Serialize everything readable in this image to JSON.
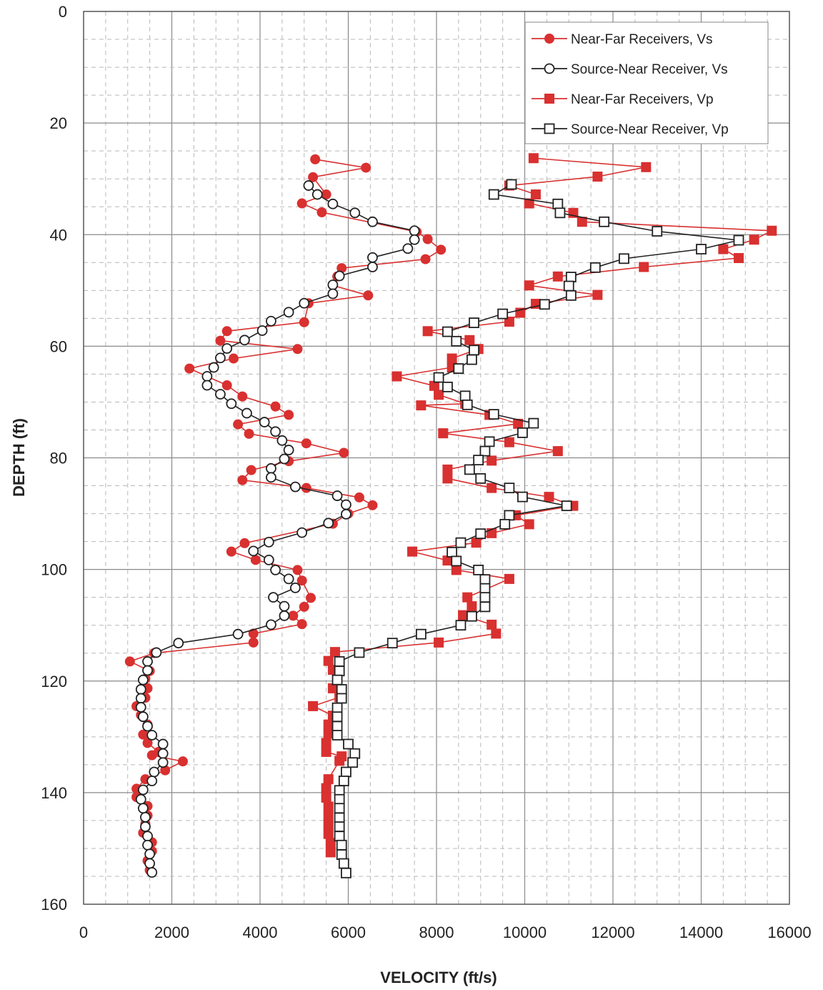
{
  "chart_data": {
    "type": "line",
    "title": "",
    "xlabel": "VELOCITY (ft/s)",
    "ylabel": "DEPTH (ft)",
    "xlim": [
      0,
      16000
    ],
    "ylim": [
      0,
      160
    ],
    "y_inverted": true,
    "x_ticks": [
      "0",
      "2000",
      "4000",
      "6000",
      "8000",
      "10000",
      "12000",
      "14000",
      "16000"
    ],
    "y_ticks": [
      "0",
      "20",
      "40",
      "60",
      "80",
      "100",
      "120",
      "140",
      "160"
    ],
    "grid": "major solid, minor dashed",
    "legend_position": "top-right",
    "series": [
      {
        "name": "Near-Far Receivers, Vs",
        "color": "#d93030",
        "marker": "filled-circle",
        "points": [
          [
            5250,
            26.5
          ],
          [
            6400,
            28
          ],
          [
            5200,
            29.7
          ],
          [
            5500,
            32.8
          ],
          [
            4950,
            34.4
          ],
          [
            5400,
            36
          ],
          [
            7550,
            39.5
          ],
          [
            7800,
            40.8
          ],
          [
            8100,
            42.7
          ],
          [
            7750,
            44.4
          ],
          [
            5850,
            46
          ],
          [
            5750,
            47.5
          ],
          [
            5650,
            49.1
          ],
          [
            6450,
            50.9
          ],
          [
            5100,
            52.3
          ],
          [
            5000,
            55.7
          ],
          [
            3250,
            57.3
          ],
          [
            3100,
            59
          ],
          [
            4850,
            60.5
          ],
          [
            3400,
            62.2
          ],
          [
            2400,
            64
          ],
          [
            3250,
            67
          ],
          [
            3600,
            69
          ],
          [
            4350,
            70.8
          ],
          [
            4650,
            72.3
          ],
          [
            3500,
            74
          ],
          [
            3750,
            75.7
          ],
          [
            5050,
            77.4
          ],
          [
            5900,
            79.1
          ],
          [
            4650,
            80.6
          ],
          [
            3800,
            82.2
          ],
          [
            3600,
            84
          ],
          [
            5050,
            85.4
          ],
          [
            6250,
            87.1
          ],
          [
            6550,
            88.5
          ],
          [
            6000,
            90
          ],
          [
            5650,
            91.8
          ],
          [
            3650,
            95.3
          ],
          [
            3350,
            96.8
          ],
          [
            3900,
            98.3
          ],
          [
            4850,
            100.1
          ],
          [
            4950,
            102
          ],
          [
            5150,
            105.1
          ],
          [
            5000,
            106.7
          ],
          [
            4750,
            108.3
          ],
          [
            4950,
            109.8
          ],
          [
            3850,
            111.5
          ],
          [
            3850,
            113.1
          ],
          [
            1600,
            115
          ],
          [
            1050,
            116.5
          ],
          [
            1500,
            118.2
          ],
          [
            1400,
            119.6
          ],
          [
            1450,
            121.3
          ],
          [
            1400,
            123
          ],
          [
            1200,
            124.5
          ],
          [
            1300,
            126.1
          ],
          [
            1450,
            127.8
          ],
          [
            1350,
            129.6
          ],
          [
            1450,
            131.1
          ],
          [
            1700,
            132.7
          ],
          [
            1550,
            133.3
          ],
          [
            2250,
            134.4
          ],
          [
            1850,
            136
          ],
          [
            1400,
            137.6
          ],
          [
            1200,
            139.3
          ],
          [
            1200,
            140.8
          ],
          [
            1450,
            142.4
          ],
          [
            1450,
            144.1
          ],
          [
            1400,
            145.6
          ],
          [
            1350,
            147.2
          ],
          [
            1550,
            148.9
          ],
          [
            1550,
            150.5
          ],
          [
            1450,
            152.2
          ],
          [
            1500,
            153.9
          ]
        ]
      },
      {
        "name": "Source-Near Receiver, Vs",
        "color": "#222222",
        "marker": "open-circle",
        "points": [
          [
            5100,
            31.2
          ],
          [
            5300,
            32.8
          ],
          [
            5650,
            34.5
          ],
          [
            6150,
            36.1
          ],
          [
            6550,
            37.7
          ],
          [
            7500,
            39.3
          ],
          [
            7500,
            40.9
          ],
          [
            7350,
            42.5
          ],
          [
            6550,
            44.1
          ],
          [
            6550,
            45.8
          ],
          [
            5800,
            47.4
          ],
          [
            5650,
            49
          ],
          [
            5650,
            50.6
          ],
          [
            5000,
            52.3
          ],
          [
            4650,
            53.9
          ],
          [
            4250,
            55.5
          ],
          [
            4050,
            57.2
          ],
          [
            3650,
            58.9
          ],
          [
            3250,
            60.4
          ],
          [
            3100,
            62.1
          ],
          [
            2950,
            63.8
          ],
          [
            2800,
            65.4
          ],
          [
            2800,
            67
          ],
          [
            3100,
            68.6
          ],
          [
            3350,
            70.3
          ],
          [
            3700,
            72
          ],
          [
            4100,
            73.6
          ],
          [
            4350,
            75.3
          ],
          [
            4500,
            76.9
          ],
          [
            4650,
            78.6
          ],
          [
            4550,
            80.2
          ],
          [
            4250,
            81.9
          ],
          [
            4250,
            83.5
          ],
          [
            4800,
            85.2
          ],
          [
            5750,
            86.8
          ],
          [
            5950,
            88.4
          ],
          [
            5950,
            90.1
          ],
          [
            5550,
            91.7
          ],
          [
            4950,
            93.4
          ],
          [
            4200,
            95.1
          ],
          [
            3850,
            96.7
          ],
          [
            4200,
            98.3
          ],
          [
            4350,
            100.1
          ],
          [
            4650,
            101.7
          ],
          [
            4800,
            103.3
          ],
          [
            4300,
            105
          ],
          [
            4550,
            106.6
          ],
          [
            4550,
            108.3
          ],
          [
            4250,
            109.9
          ],
          [
            3500,
            111.6
          ],
          [
            2150,
            113.2
          ],
          [
            1650,
            114.9
          ],
          [
            1450,
            116.5
          ],
          [
            1450,
            118.1
          ],
          [
            1350,
            119.8
          ],
          [
            1300,
            121.5
          ],
          [
            1300,
            123.1
          ],
          [
            1300,
            124.7
          ],
          [
            1350,
            126.4
          ],
          [
            1450,
            128.1
          ],
          [
            1550,
            129.7
          ],
          [
            1800,
            131.3
          ],
          [
            1800,
            133
          ],
          [
            1800,
            134.6
          ],
          [
            1600,
            136.3
          ],
          [
            1550,
            137.9
          ],
          [
            1350,
            139.5
          ],
          [
            1300,
            141.2
          ],
          [
            1350,
            142.8
          ],
          [
            1400,
            144.4
          ],
          [
            1400,
            146.1
          ],
          [
            1450,
            147.8
          ],
          [
            1450,
            149.4
          ],
          [
            1500,
            151
          ],
          [
            1500,
            152.7
          ],
          [
            1550,
            154.3
          ]
        ]
      },
      {
        "name": "Near-Far Receivers, Vp",
        "color": "#d93030",
        "marker": "filled-square",
        "points": [
          [
            10200,
            26.3
          ],
          [
            12750,
            27.9
          ],
          [
            11650,
            29.6
          ],
          [
            9650,
            31.2
          ],
          [
            10250,
            32.8
          ],
          [
            10100,
            34.4
          ],
          [
            11100,
            36.1
          ],
          [
            11300,
            37.7
          ],
          [
            15600,
            39.3
          ],
          [
            15200,
            40.9
          ],
          [
            14500,
            42.6
          ],
          [
            14850,
            44.2
          ],
          [
            12700,
            45.8
          ],
          [
            10750,
            47.5
          ],
          [
            10100,
            49.1
          ],
          [
            11650,
            50.8
          ],
          [
            10250,
            52.4
          ],
          [
            9900,
            54
          ],
          [
            9650,
            55.6
          ],
          [
            7800,
            57.3
          ],
          [
            8750,
            58.9
          ],
          [
            8950,
            60.5
          ],
          [
            8350,
            62.2
          ],
          [
            8350,
            63.8
          ],
          [
            7100,
            65.4
          ],
          [
            7950,
            67.1
          ],
          [
            8050,
            68.7
          ],
          [
            8650,
            70.3
          ],
          [
            7650,
            70.6
          ],
          [
            9200,
            72.3
          ],
          [
            9850,
            73.9
          ],
          [
            8150,
            75.6
          ],
          [
            9650,
            77.2
          ],
          [
            10750,
            78.8
          ],
          [
            9250,
            80.5
          ],
          [
            8250,
            82.1
          ],
          [
            8250,
            83.7
          ],
          [
            9250,
            85.4
          ],
          [
            10550,
            87
          ],
          [
            11100,
            88.6
          ],
          [
            9800,
            90.3
          ],
          [
            10100,
            91.9
          ],
          [
            9250,
            93.5
          ],
          [
            8900,
            95.2
          ],
          [
            7450,
            96.8
          ],
          [
            8250,
            98.4
          ],
          [
            8450,
            100.1
          ],
          [
            9650,
            101.7
          ],
          [
            8700,
            105
          ],
          [
            8800,
            106.6
          ],
          [
            8600,
            108.2
          ],
          [
            9250,
            109.9
          ],
          [
            9350,
            111.5
          ],
          [
            8050,
            113.1
          ],
          [
            5700,
            114.8
          ],
          [
            5550,
            116.4
          ],
          [
            5650,
            118
          ],
          [
            5650,
            121.3
          ],
          [
            5800,
            122.9
          ],
          [
            5200,
            124.5
          ],
          [
            5650,
            126.2
          ],
          [
            5550,
            127.8
          ],
          [
            5550,
            129.4
          ],
          [
            5500,
            131.1
          ],
          [
            5500,
            132.7
          ],
          [
            5850,
            133.5
          ],
          [
            5800,
            134.3
          ],
          [
            5550,
            137.6
          ],
          [
            5500,
            139.2
          ],
          [
            5500,
            140.9
          ],
          [
            5550,
            142.5
          ],
          [
            5550,
            144.1
          ],
          [
            5550,
            145.8
          ],
          [
            5550,
            147.4
          ],
          [
            5600,
            149
          ],
          [
            5600,
            150.7
          ]
        ]
      },
      {
        "name": "Source-Near Receiver, Vp",
        "color": "#222222",
        "marker": "open-square",
        "points": [
          [
            9700,
            31
          ],
          [
            9300,
            32.8
          ],
          [
            10750,
            34.5
          ],
          [
            10800,
            36.1
          ],
          [
            11800,
            37.7
          ],
          [
            13000,
            39.4
          ],
          [
            14850,
            41
          ],
          [
            14000,
            42.6
          ],
          [
            12250,
            44.3
          ],
          [
            11600,
            45.9
          ],
          [
            11050,
            47.6
          ],
          [
            11000,
            49.2
          ],
          [
            11050,
            50.9
          ],
          [
            10450,
            52.5
          ],
          [
            9500,
            54.2
          ],
          [
            8850,
            55.8
          ],
          [
            8250,
            57.4
          ],
          [
            8450,
            59.1
          ],
          [
            8850,
            60.7
          ],
          [
            8800,
            62.4
          ],
          [
            8500,
            64
          ],
          [
            8050,
            65.6
          ],
          [
            8250,
            67.3
          ],
          [
            8650,
            68.9
          ],
          [
            8700,
            70.5
          ],
          [
            9300,
            72.2
          ],
          [
            10200,
            73.8
          ],
          [
            9950,
            75.5
          ],
          [
            9200,
            77.1
          ],
          [
            9100,
            78.8
          ],
          [
            8950,
            80.4
          ],
          [
            8750,
            82.1
          ],
          [
            9000,
            83.7
          ],
          [
            9650,
            85.4
          ],
          [
            9950,
            87
          ],
          [
            10950,
            88.6
          ],
          [
            9650,
            90.3
          ],
          [
            9550,
            91.9
          ],
          [
            9000,
            93.6
          ],
          [
            8550,
            95.2
          ],
          [
            8350,
            96.9
          ],
          [
            8450,
            98.5
          ],
          [
            8950,
            100.1
          ],
          [
            9100,
            101.8
          ],
          [
            9100,
            103.4
          ],
          [
            9100,
            105
          ],
          [
            9100,
            106.7
          ],
          [
            8800,
            108.4
          ],
          [
            8550,
            110
          ],
          [
            7650,
            111.6
          ],
          [
            7000,
            113.2
          ],
          [
            6250,
            114.9
          ],
          [
            5800,
            116.5
          ],
          [
            5800,
            118.2
          ],
          [
            5750,
            119.8
          ],
          [
            5850,
            121.5
          ],
          [
            5850,
            123.1
          ],
          [
            5750,
            124.8
          ],
          [
            5750,
            126.4
          ],
          [
            5750,
            128.1
          ],
          [
            5750,
            129.7
          ],
          [
            6000,
            131.3
          ],
          [
            6150,
            133
          ],
          [
            6100,
            134.6
          ],
          [
            5950,
            136.3
          ],
          [
            5900,
            137.9
          ],
          [
            5800,
            139.6
          ],
          [
            5800,
            141.2
          ],
          [
            5800,
            142.8
          ],
          [
            5800,
            144.5
          ],
          [
            5800,
            146.1
          ],
          [
            5800,
            147.8
          ],
          [
            5850,
            149.4
          ],
          [
            5850,
            151.1
          ],
          [
            5900,
            152.7
          ],
          [
            5950,
            154.4
          ]
        ]
      }
    ]
  }
}
